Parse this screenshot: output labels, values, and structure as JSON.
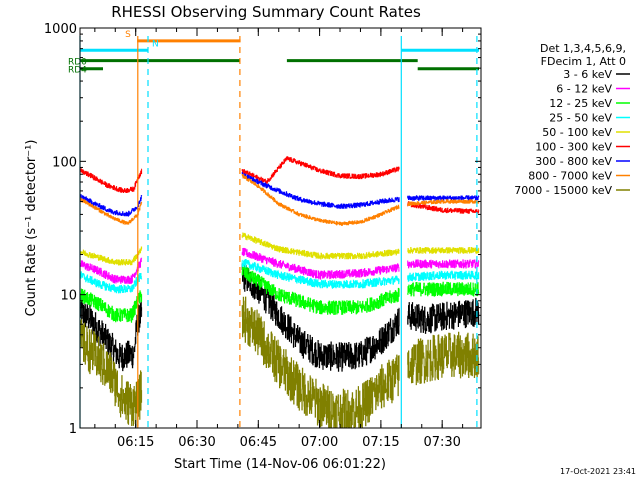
{
  "chart_data": {
    "type": "line",
    "title": "RHESSI Observing Summary Count Rates",
    "xlabel": "Start Time (14-Nov-06 06:01:22)",
    "ylabel": "Count Rate (s⁻¹ detector⁻¹)",
    "yscale": "log",
    "ylim": [
      1,
      1000
    ],
    "xlim": [
      "06:01:22",
      "07:39:30"
    ],
    "x_ticks": [
      "06:15",
      "06:30",
      "06:45",
      "07:00",
      "07:15",
      "07:30"
    ],
    "y_ticks": [
      {
        "value": 1,
        "label": "1"
      },
      {
        "value": 10,
        "label": "10"
      },
      {
        "value": 100,
        "label": "100"
      },
      {
        "value": 1000,
        "label": "1000"
      }
    ],
    "grid": false,
    "legend_header": [
      "Det 1,3,4,5,6,9,",
      "FDecim 1, Att 0"
    ],
    "legend_position": "right",
    "timestamp": "17-Oct-2021 23:41",
    "gaps": [
      [
        "06:16:30",
        "06:40:30"
      ],
      [
        "07:19:30",
        "07:21:30"
      ]
    ],
    "flags": [
      {
        "label": "S",
        "color": "#ff8000",
        "y": 800,
        "segments": [
          [
            "06:15:20",
            "06:40:40"
          ]
        ]
      },
      {
        "label": "N",
        "color": "#00e0ff",
        "y": 680,
        "segments": [
          [
            "06:01:22",
            "06:18:00"
          ],
          [
            "07:20:00",
            "07:39:00"
          ]
        ]
      },
      {
        "label": "RD0",
        "color": "#007000",
        "y": 570,
        "segments": [
          [
            "06:01:22",
            "06:40:30"
          ],
          [
            "06:52:00",
            "07:24:00"
          ]
        ]
      },
      {
        "label": "RD4",
        "color": "#007000",
        "y": 495,
        "segments": [
          [
            "06:01:22",
            "06:07:00"
          ],
          [
            "07:24:00",
            "07:39:00"
          ]
        ]
      }
    ],
    "vlines": [
      {
        "time": "06:01:00",
        "color": "#00e0ff",
        "style": "solid"
      },
      {
        "time": "06:15:30",
        "color": "#ff8000",
        "style": "solid"
      },
      {
        "time": "06:18:00",
        "color": "#00e0ff",
        "style": "dashed"
      },
      {
        "time": "06:40:30",
        "color": "#ff8000",
        "style": "dashed"
      },
      {
        "time": "07:20:00",
        "color": "#00e0ff",
        "style": "solid"
      },
      {
        "time": "07:38:30",
        "color": "#00e0ff",
        "style": "dashed"
      }
    ],
    "series": [
      {
        "name": "3 - 6 keV",
        "color": "#000000",
        "noise": 0.25,
        "floor": 0,
        "points": [
          [
            "06:01:22",
            7.5
          ],
          [
            "06:04:00",
            6.5
          ],
          [
            "06:08:00",
            4.5
          ],
          [
            "06:11:00",
            3.4
          ],
          [
            "06:14:30",
            3.6
          ],
          [
            "06:15:30",
            6.5
          ],
          [
            "06:16:30",
            7
          ],
          null,
          [
            "06:41:00",
            14
          ],
          [
            "06:45:00",
            11
          ],
          [
            "06:50:00",
            7
          ],
          [
            "06:55:00",
            4.5
          ],
          [
            "07:00:00",
            3.5
          ],
          [
            "07:05:00",
            3.4
          ],
          [
            "07:10:00",
            3.5
          ],
          [
            "07:15:00",
            4.5
          ],
          [
            "07:19:30",
            6.5
          ],
          null,
          [
            "07:21:30",
            7
          ],
          [
            "07:26:00",
            6.5
          ],
          [
            "07:32:00",
            7
          ],
          [
            "07:39:00",
            7.5
          ]
        ]
      },
      {
        "name": "6 - 12 keV",
        "color": "#ff00ff",
        "noise": 0.07,
        "floor": 0,
        "points": [
          [
            "06:01:22",
            17
          ],
          [
            "06:06:00",
            15
          ],
          [
            "06:10:00",
            13
          ],
          [
            "06:14:00",
            13
          ],
          [
            "06:15:30",
            16
          ],
          [
            "06:16:30",
            18
          ],
          null,
          [
            "06:41:00",
            21
          ],
          [
            "06:50:00",
            17
          ],
          [
            "07:00:00",
            14
          ],
          [
            "07:10:00",
            14.5
          ],
          [
            "07:19:30",
            16
          ],
          null,
          [
            "07:21:30",
            17
          ],
          [
            "07:30:00",
            17
          ],
          [
            "07:39:00",
            17
          ]
        ]
      },
      {
        "name": "12 - 25 keV",
        "color": "#00ff00",
        "noise": 0.12,
        "floor": 0,
        "points": [
          [
            "06:01:22",
            10
          ],
          [
            "06:06:00",
            8.5
          ],
          [
            "06:10:00",
            7
          ],
          [
            "06:14:00",
            7
          ],
          [
            "06:15:30",
            9
          ],
          [
            "06:16:30",
            10
          ],
          null,
          [
            "06:41:00",
            15
          ],
          [
            "06:50:00",
            10
          ],
          [
            "07:00:00",
            8
          ],
          [
            "07:10:00",
            8
          ],
          [
            "07:19:30",
            10
          ],
          null,
          [
            "07:21:30",
            11
          ],
          [
            "07:30:00",
            11
          ],
          [
            "07:39:00",
            11
          ]
        ]
      },
      {
        "name": "25 - 50 keV",
        "color": "#00ffff",
        "noise": 0.07,
        "floor": 0,
        "points": [
          [
            "06:01:22",
            14
          ],
          [
            "06:06:00",
            12
          ],
          [
            "06:10:00",
            11
          ],
          [
            "06:14:00",
            11
          ],
          [
            "06:15:30",
            13
          ],
          [
            "06:16:30",
            14
          ],
          null,
          [
            "06:41:00",
            17.5
          ],
          [
            "06:50:00",
            14
          ],
          [
            "07:00:00",
            12
          ],
          [
            "07:10:00",
            12
          ],
          [
            "07:19:30",
            13
          ],
          null,
          [
            "07:21:30",
            13.5
          ],
          [
            "07:30:00",
            14
          ],
          [
            "07:39:00",
            14
          ]
        ]
      },
      {
        "name": "50 - 100 keV",
        "color": "#e0e000",
        "noise": 0.05,
        "floor": 0,
        "points": [
          [
            "06:01:22",
            21
          ],
          [
            "06:06:00",
            19
          ],
          [
            "06:10:00",
            17.5
          ],
          [
            "06:14:00",
            17.5
          ],
          [
            "06:15:30",
            20
          ],
          [
            "06:16:30",
            22
          ],
          null,
          [
            "06:41:00",
            28
          ],
          [
            "06:50:00",
            22
          ],
          [
            "07:00:00",
            19.5
          ],
          [
            "07:10:00",
            19.5
          ],
          [
            "07:19:30",
            21
          ],
          null,
          [
            "07:21:30",
            21.5
          ],
          [
            "07:30:00",
            21.5
          ],
          [
            "07:39:00",
            21.5
          ]
        ]
      },
      {
        "name": "100 - 300 keV",
        "color": "#ff0000",
        "noise": 0.04,
        "floor": 0,
        "points": [
          [
            "06:01:22",
            85
          ],
          [
            "06:04:00",
            78
          ],
          [
            "06:08:00",
            66
          ],
          [
            "06:12:00",
            60
          ],
          [
            "06:14:30",
            62
          ],
          [
            "06:15:30",
            75
          ],
          [
            "06:16:30",
            85
          ],
          null,
          [
            "06:41:00",
            85
          ],
          [
            "06:47:00",
            70
          ],
          [
            "06:52:00",
            105
          ],
          [
            "06:56:00",
            95
          ],
          [
            "07:00:00",
            85
          ],
          [
            "07:05:00",
            78
          ],
          [
            "07:10:00",
            77
          ],
          [
            "07:15:00",
            80
          ],
          [
            "07:19:30",
            88
          ],
          null,
          [
            "07:21:30",
            48
          ],
          [
            "07:30:00",
            43
          ],
          [
            "07:39:00",
            42
          ]
        ]
      },
      {
        "name": "300 - 800 keV",
        "color": "#0000ff",
        "noise": 0.04,
        "floor": 0,
        "points": [
          [
            "06:01:22",
            55
          ],
          [
            "06:05:00",
            48
          ],
          [
            "06:09:00",
            42
          ],
          [
            "06:13:00",
            40
          ],
          [
            "06:15:30",
            46
          ],
          [
            "06:16:30",
            55
          ],
          null,
          [
            "06:41:00",
            80
          ],
          [
            "06:45:00",
            70
          ],
          [
            "06:50:00",
            60
          ],
          [
            "06:55:00",
            52
          ],
          [
            "07:00:00",
            48
          ],
          [
            "07:05:00",
            46
          ],
          [
            "07:10:00",
            47
          ],
          [
            "07:15:00",
            50
          ],
          [
            "07:19:30",
            52
          ],
          null,
          [
            "07:21:30",
            53
          ],
          [
            "07:30:00",
            53
          ],
          [
            "07:39:00",
            53
          ]
        ]
      },
      {
        "name": "800 - 7000 keV",
        "color": "#ff8000",
        "noise": 0.03,
        "floor": 0,
        "points": [
          [
            "06:01:22",
            52
          ],
          [
            "06:05:00",
            45
          ],
          [
            "06:09:00",
            38
          ],
          [
            "06:13:00",
            34
          ],
          [
            "06:15:30",
            40
          ],
          [
            "06:16:30",
            50
          ],
          null,
          [
            "06:41:00",
            78
          ],
          [
            "06:45:00",
            65
          ],
          [
            "06:50:00",
            48
          ],
          [
            "06:55:00",
            40
          ],
          [
            "07:00:00",
            36
          ],
          [
            "07:05:00",
            34
          ],
          [
            "07:10:00",
            35
          ],
          [
            "07:15:00",
            40
          ],
          [
            "07:19:30",
            46
          ],
          null,
          [
            "07:21:30",
            48
          ],
          [
            "07:30:00",
            50
          ],
          [
            "07:39:00",
            50
          ]
        ]
      },
      {
        "name": "7000 - 15000 keV",
        "color": "#808000",
        "noise": 0.4,
        "floor": 1,
        "points": [
          [
            "06:01:22",
            4.5
          ],
          [
            "06:05:00",
            3.5
          ],
          [
            "06:09:00",
            2.5
          ],
          [
            "06:12:00",
            1.6
          ],
          [
            "06:15:30",
            1.5
          ],
          [
            "06:16:30",
            2
          ],
          null,
          [
            "06:41:00",
            7
          ],
          [
            "06:45:00",
            5
          ],
          [
            "06:50:00",
            3
          ],
          [
            "06:55:00",
            2
          ],
          [
            "07:00:00",
            1.5
          ],
          [
            "07:05:00",
            1.3
          ],
          [
            "07:10:00",
            1.4
          ],
          [
            "07:15:00",
            2
          ],
          [
            "07:19:30",
            2.5
          ],
          null,
          [
            "07:21:30",
            3
          ],
          [
            "07:30:00",
            3.5
          ],
          [
            "07:39:00",
            3.5
          ]
        ]
      }
    ]
  }
}
